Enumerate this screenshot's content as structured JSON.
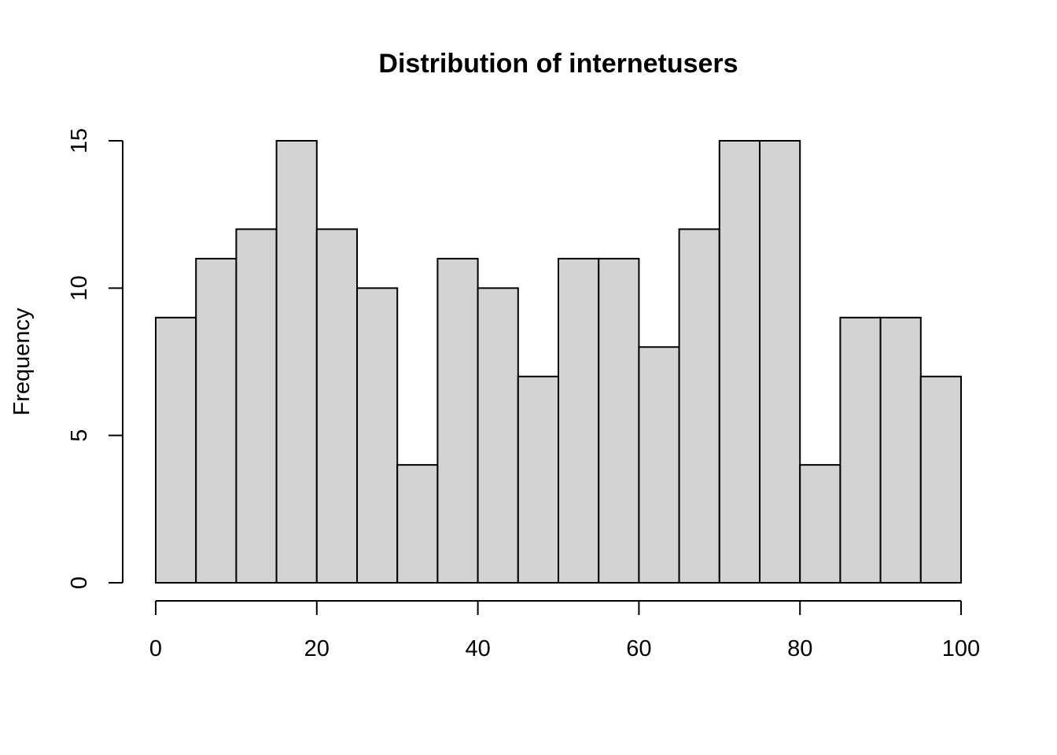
{
  "chart_data": {
    "type": "bar",
    "subtype": "histogram",
    "title": "Distribution of internetusers",
    "xlabel": "",
    "ylabel": "Frequency",
    "bin_width": 5,
    "bins": [
      [
        0,
        5
      ],
      [
        5,
        10
      ],
      [
        10,
        15
      ],
      [
        15,
        20
      ],
      [
        20,
        25
      ],
      [
        25,
        30
      ],
      [
        30,
        35
      ],
      [
        35,
        40
      ],
      [
        40,
        45
      ],
      [
        45,
        50
      ],
      [
        50,
        55
      ],
      [
        55,
        60
      ],
      [
        60,
        65
      ],
      [
        65,
        70
      ],
      [
        70,
        75
      ],
      [
        75,
        80
      ],
      [
        80,
        85
      ],
      [
        85,
        90
      ],
      [
        90,
        95
      ],
      [
        95,
        100
      ]
    ],
    "values": [
      9,
      11,
      12,
      15,
      12,
      10,
      4,
      11,
      10,
      7,
      11,
      11,
      8,
      12,
      15,
      15,
      4,
      9,
      9,
      7
    ],
    "xlim": [
      0,
      100
    ],
    "ylim": [
      0,
      15
    ],
    "x_ticks": [
      0,
      20,
      40,
      60,
      80,
      100
    ],
    "x_tick_labels": [
      "0",
      "20",
      "40",
      "60",
      "80",
      "100"
    ],
    "y_ticks": [
      0,
      5,
      10,
      15
    ],
    "y_tick_labels": [
      "0",
      "5",
      "10",
      "15"
    ],
    "grid": false,
    "legend": null,
    "colors": {
      "bar_fill": "#d3d3d3",
      "bar_stroke": "#000000",
      "axis": "#000000",
      "text": "#000000",
      "background": "#ffffff"
    }
  }
}
